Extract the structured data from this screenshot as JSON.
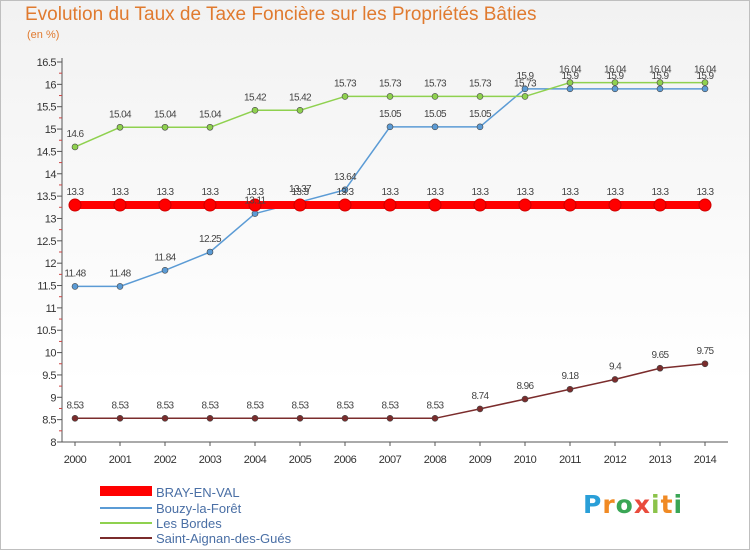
{
  "title": "Evolution du Taux de Taxe Foncière sur les Propriétés Bâties",
  "unit_label": "(en %)",
  "logo_text": "Proxiti",
  "chart_data": {
    "type": "line",
    "x": [
      "2000",
      "2001",
      "2002",
      "2003",
      "2004",
      "2005",
      "2006",
      "2007",
      "2008",
      "2009",
      "2010",
      "2011",
      "2012",
      "2013",
      "2014"
    ],
    "ylim": [
      8,
      16.5
    ],
    "yticks": [
      "8",
      "8.5",
      "9",
      "9.5",
      "10",
      "10.5",
      "11",
      "11.5",
      "12",
      "12.5",
      "13",
      "13.5",
      "14",
      "14.5",
      "15",
      "15.5",
      "16",
      "16.5"
    ],
    "grid": false,
    "legend_position": "bottom-left",
    "series": [
      {
        "name": "BRAY-EN-VAL",
        "color": "#ff0000",
        "values": [
          13.3,
          13.3,
          13.3,
          13.3,
          13.3,
          13.3,
          13.3,
          13.3,
          13.3,
          13.3,
          13.3,
          13.3,
          13.3,
          13.3,
          13.3
        ],
        "labels": [
          "13.3",
          "13.3",
          "13.3",
          "13.3",
          "13.3",
          "13.3",
          "13.3",
          "13.3",
          "13.3",
          "13.3",
          "13.3",
          "13.3",
          "13.3",
          "13.3",
          "13.3"
        ]
      },
      {
        "name": "Bouzy-la-Forêt",
        "color": "#5b9bd5",
        "values": [
          11.48,
          11.48,
          11.84,
          12.25,
          13.11,
          13.37,
          13.64,
          15.05,
          15.05,
          15.05,
          15.9,
          15.9,
          15.9,
          15.9,
          15.9
        ],
        "labels": [
          "11.48",
          "11.48",
          "11.84",
          "12.25",
          "13.11",
          "13.37",
          "13.64",
          "15.05",
          "15.05",
          "15.05",
          "15.9",
          "15.9",
          "15.9",
          "15.9",
          "15.9"
        ]
      },
      {
        "name": "Les Bordes",
        "color": "#8fd14f",
        "values": [
          14.6,
          15.04,
          15.04,
          15.04,
          15.42,
          15.42,
          15.73,
          15.73,
          15.73,
          15.73,
          15.73,
          16.04,
          16.04,
          16.04,
          16.04
        ],
        "labels": [
          "14.6",
          "15.04",
          "15.04",
          "15.04",
          "15.42",
          "15.42",
          "15.73",
          "15.73",
          "15.73",
          "15.73",
          "15.73",
          "16.04",
          "16.04",
          "16.04",
          "16.04"
        ]
      },
      {
        "name": "Saint-Aignan-des-Gués",
        "color": "#7b2c2c",
        "values": [
          8.53,
          8.53,
          8.53,
          8.53,
          8.53,
          8.53,
          8.53,
          8.53,
          8.53,
          8.74,
          8.96,
          9.18,
          9.4,
          9.65,
          9.75
        ],
        "labels": [
          "8.53",
          "8.53",
          "8.53",
          "8.53",
          "8.53",
          "8.53",
          "8.53",
          "8.53",
          "8.53",
          "8.74",
          "8.96",
          "9.18",
          "9.4",
          "9.65",
          "9.75"
        ]
      }
    ]
  }
}
